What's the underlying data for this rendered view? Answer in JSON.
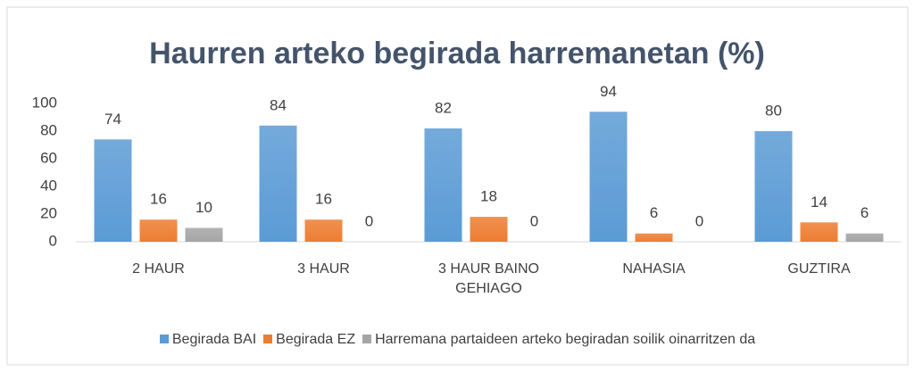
{
  "chart_data": {
    "type": "bar",
    "title": "Haurren arteko begirada harremanetan (%)",
    "categories": [
      "2 HAUR",
      "3 HAUR",
      "3 HAUR BAINO GEHIAGO",
      "NAHASIA",
      "GUZTIRA"
    ],
    "series": [
      {
        "name": "Begirada BAI",
        "color": "#5b9bd5",
        "values": [
          74,
          84,
          82,
          94,
          80
        ]
      },
      {
        "name": "Begirada EZ",
        "color": "#ed7d31",
        "values": [
          16,
          16,
          18,
          6,
          14
        ]
      },
      {
        "name": "Harremana partaideen arteko begiradan soilik oinarritzen da",
        "color": "#a5a5a5",
        "values": [
          10,
          0,
          0,
          0,
          6
        ]
      }
    ],
    "ylim": [
      0,
      100
    ],
    "yticks": [
      0,
      20,
      40,
      60,
      80,
      100
    ],
    "grid": false,
    "legend": "bottom"
  }
}
